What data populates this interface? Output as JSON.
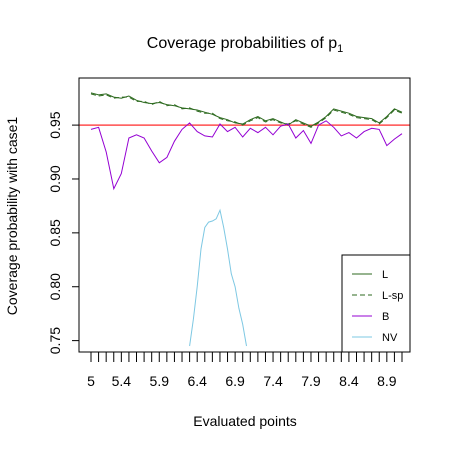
{
  "chart_data": {
    "type": "line",
    "title": "Coverage probabilities of p",
    "title_subscript": "1",
    "xlabel": "Evaluated points",
    "ylabel": "Coverage probability with case1",
    "xlim": [
      5.0,
      9.1
    ],
    "ylim": [
      0.745,
      0.99
    ],
    "x_tick_labels": [
      "5",
      "5.4",
      "5.9",
      "6.4",
      "6.9",
      "7.4",
      "7.9",
      "8.4",
      "8.9"
    ],
    "x_ticks_at": [
      5.0,
      5.4,
      5.9,
      6.4,
      6.9,
      7.4,
      7.9,
      8.4,
      8.9
    ],
    "y_ticks": [
      0.75,
      0.8,
      0.85,
      0.9,
      0.95
    ],
    "y_tick_labels": [
      "0.75",
      "0.80",
      "0.85",
      "0.90",
      "0.95"
    ],
    "reference_line": {
      "y": 0.95,
      "color": "#ff4d4d"
    },
    "legend_position": "bottom-right",
    "series": [
      {
        "name": "L",
        "color": "#2d6a1f",
        "dash": "solid",
        "x": [
          5.0,
          5.1,
          5.2,
          5.3,
          5.4,
          5.5,
          5.6,
          5.7,
          5.8,
          5.9,
          6.0,
          6.1,
          6.2,
          6.3,
          6.4,
          6.5,
          6.6,
          6.7,
          6.8,
          6.9,
          7.0,
          7.1,
          7.2,
          7.3,
          7.4,
          7.5,
          7.6,
          7.7,
          7.8,
          7.9,
          8.0,
          8.1,
          8.2,
          8.3,
          8.4,
          8.5,
          8.6,
          8.7,
          8.8,
          8.9,
          9.0,
          9.1
        ],
        "y": [
          0.98,
          0.978,
          0.979,
          0.976,
          0.975,
          0.977,
          0.973,
          0.971,
          0.97,
          0.971,
          0.969,
          0.968,
          0.966,
          0.965,
          0.964,
          0.962,
          0.96,
          0.957,
          0.955,
          0.952,
          0.951,
          0.955,
          0.958,
          0.954,
          0.956,
          0.953,
          0.95,
          0.955,
          0.952,
          0.949,
          0.953,
          0.958,
          0.965,
          0.963,
          0.961,
          0.958,
          0.957,
          0.956,
          0.952,
          0.958,
          0.965,
          0.962
        ]
      },
      {
        "name": "L-sp",
        "color": "#2d6a1f",
        "dash": "dashed",
        "x": [
          5.0,
          5.1,
          5.2,
          5.3,
          5.4,
          5.5,
          5.6,
          5.7,
          5.8,
          5.9,
          6.0,
          6.1,
          6.2,
          6.3,
          6.4,
          6.5,
          6.6,
          6.7,
          6.8,
          6.9,
          7.0,
          7.1,
          7.2,
          7.3,
          7.4,
          7.5,
          7.6,
          7.7,
          7.8,
          7.9,
          8.0,
          8.1,
          8.2,
          8.3,
          8.4,
          8.5,
          8.6,
          8.7,
          8.8,
          8.9,
          9.0,
          9.1
        ],
        "y": [
          0.979,
          0.977,
          0.978,
          0.975,
          0.976,
          0.976,
          0.972,
          0.972,
          0.969,
          0.972,
          0.968,
          0.969,
          0.965,
          0.966,
          0.963,
          0.961,
          0.961,
          0.956,
          0.954,
          0.953,
          0.95,
          0.954,
          0.957,
          0.953,
          0.955,
          0.952,
          0.951,
          0.954,
          0.951,
          0.948,
          0.952,
          0.957,
          0.964,
          0.962,
          0.96,
          0.957,
          0.956,
          0.955,
          0.951,
          0.957,
          0.964,
          0.961
        ]
      },
      {
        "name": "B",
        "color": "#9400d3",
        "dash": "solid",
        "x": [
          5.0,
          5.1,
          5.2,
          5.3,
          5.4,
          5.5,
          5.6,
          5.7,
          5.8,
          5.9,
          6.0,
          6.1,
          6.2,
          6.3,
          6.4,
          6.5,
          6.6,
          6.7,
          6.8,
          6.9,
          7.0,
          7.1,
          7.2,
          7.3,
          7.4,
          7.5,
          7.6,
          7.7,
          7.8,
          7.9,
          8.0,
          8.1,
          8.2,
          8.3,
          8.4,
          8.5,
          8.6,
          8.7,
          8.8,
          8.9,
          9.0,
          9.1
        ],
        "y": [
          0.946,
          0.948,
          0.925,
          0.891,
          0.905,
          0.938,
          0.941,
          0.938,
          0.926,
          0.915,
          0.92,
          0.935,
          0.946,
          0.952,
          0.944,
          0.94,
          0.939,
          0.951,
          0.944,
          0.948,
          0.939,
          0.947,
          0.943,
          0.948,
          0.941,
          0.949,
          0.951,
          0.938,
          0.945,
          0.933,
          0.95,
          0.954,
          0.948,
          0.94,
          0.943,
          0.938,
          0.944,
          0.947,
          0.946,
          0.931,
          0.937,
          0.942
        ]
      },
      {
        "name": "NV",
        "color": "#7ec8e3",
        "dash": "solid",
        "x": [
          6.3,
          6.35,
          6.4,
          6.45,
          6.5,
          6.55,
          6.6,
          6.65,
          6.7,
          6.75,
          6.8,
          6.85,
          6.9,
          6.95,
          7.0,
          7.05
        ],
        "y": [
          0.745,
          0.77,
          0.8,
          0.835,
          0.855,
          0.86,
          0.861,
          0.863,
          0.871,
          0.855,
          0.835,
          0.812,
          0.8,
          0.78,
          0.765,
          0.745
        ]
      }
    ]
  }
}
